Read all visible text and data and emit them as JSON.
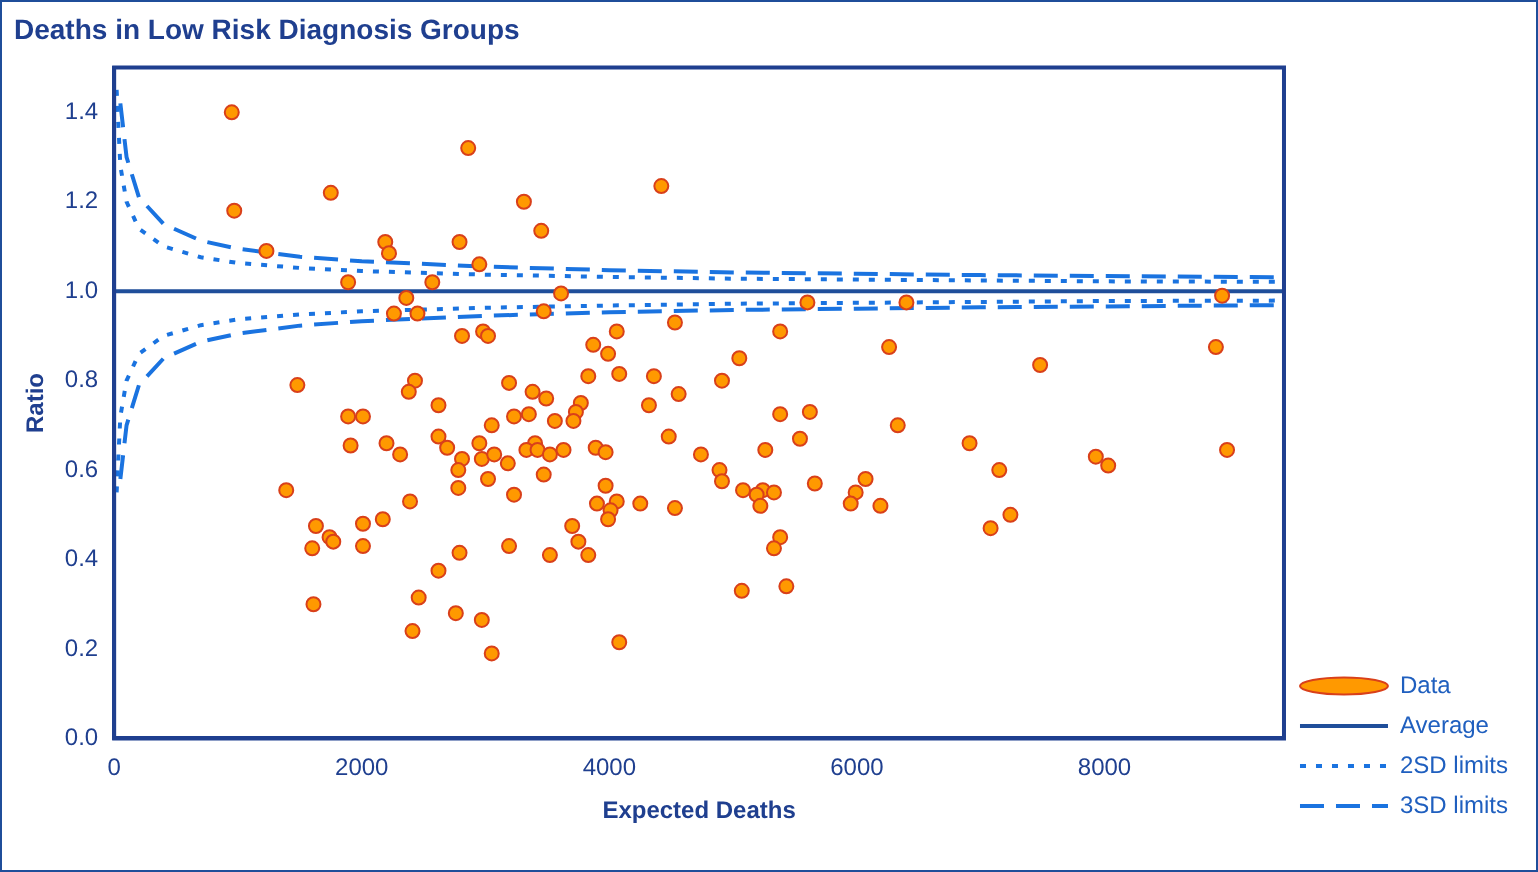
{
  "chart_data": {
    "type": "scatter",
    "title": "Deaths in Low Risk Diagnosis Groups",
    "xlabel": "Expected Deaths",
    "ylabel": "Ratio",
    "xlim": [
      0,
      9450
    ],
    "xticks": [
      0,
      2000,
      4000,
      6000,
      8000
    ],
    "ylim": [
      0,
      1.5
    ],
    "yticks": [
      {
        "value": 0,
        "label": "0.0"
      },
      {
        "value": 0.2,
        "label": "0.2"
      },
      {
        "value": 0.4,
        "label": "0.4"
      },
      {
        "value": 0.6,
        "label": "0.6"
      },
      {
        "value": 0.8,
        "label": "0.8"
      },
      {
        "value": 1,
        "label": "1.0"
      },
      {
        "value": 1.2,
        "label": "1.2"
      },
      {
        "value": 1.4,
        "label": "1.4"
      }
    ],
    "legend": "bottom right",
    "series": [
      {
        "name": "Data",
        "color": "#ff9900",
        "marker": "circle",
        "x": [
          950,
          970,
          1230,
          1750,
          2190,
          2220,
          1890,
          2570,
          2790,
          2860,
          3310,
          3450,
          2950,
          4420,
          3610,
          2360,
          2260,
          2450,
          3470,
          2810,
          2980,
          3020,
          4060,
          3870,
          3990,
          4530,
          1480,
          2430,
          2380,
          3190,
          3380,
          3490,
          3830,
          4080,
          4360,
          4560,
          2620,
          3770,
          4320,
          5600,
          6400,
          8950,
          5380,
          6260,
          8900,
          5050,
          7480,
          4910,
          3730,
          1890,
          2010,
          3230,
          3350,
          3560,
          3710,
          3050,
          1910,
          2200,
          2310,
          2620,
          2690,
          2950,
          2810,
          2970,
          3070,
          3180,
          2780,
          3400,
          3330,
          3420,
          3520,
          3630,
          3890,
          3970,
          4480,
          4740,
          3470,
          3020,
          1390,
          2780,
          3230,
          2390,
          3970,
          3900,
          4060,
          4010,
          3990,
          4250,
          4530,
          1630,
          2170,
          2010,
          1740,
          1770,
          1600,
          2010,
          3700,
          3750,
          2790,
          3190,
          3520,
          3830,
          2620,
          1610,
          2460,
          2760,
          2970,
          2410,
          3050,
          4080,
          5380,
          5620,
          5540,
          6330,
          6910,
          7150,
          7930,
          8030,
          8990,
          5260,
          4890,
          4910,
          5080,
          5240,
          5330,
          5190,
          5220,
          5660,
          6070,
          5990,
          5950,
          6190,
          7240,
          7080,
          5380,
          5330,
          5070,
          5430
        ],
        "values": [
          1.4,
          1.18,
          1.09,
          1.22,
          1.11,
          1.085,
          1.02,
          1.02,
          1.11,
          1.32,
          1.2,
          1.135,
          1.06,
          1.235,
          0.995,
          0.985,
          0.95,
          0.95,
          0.955,
          0.9,
          0.91,
          0.9,
          0.91,
          0.88,
          0.86,
          0.93,
          0.79,
          0.8,
          0.775,
          0.795,
          0.775,
          0.76,
          0.81,
          0.815,
          0.81,
          0.77,
          0.745,
          0.75,
          0.745,
          0.975,
          0.975,
          0.99,
          0.91,
          0.875,
          0.875,
          0.85,
          0.835,
          0.8,
          0.73,
          0.72,
          0.72,
          0.72,
          0.725,
          0.71,
          0.71,
          0.7,
          0.655,
          0.66,
          0.635,
          0.675,
          0.65,
          0.66,
          0.625,
          0.625,
          0.635,
          0.615,
          0.6,
          0.66,
          0.645,
          0.645,
          0.635,
          0.645,
          0.65,
          0.64,
          0.675,
          0.635,
          0.59,
          0.58,
          0.555,
          0.56,
          0.545,
          0.53,
          0.565,
          0.525,
          0.53,
          0.51,
          0.49,
          0.525,
          0.515,
          0.475,
          0.49,
          0.48,
          0.45,
          0.44,
          0.425,
          0.43,
          0.475,
          0.44,
          0.415,
          0.43,
          0.41,
          0.41,
          0.375,
          0.3,
          0.315,
          0.28,
          0.265,
          0.24,
          0.19,
          0.215,
          0.725,
          0.73,
          0.67,
          0.7,
          0.66,
          0.6,
          0.63,
          0.61,
          0.645,
          0.645,
          0.6,
          0.575,
          0.555,
          0.555,
          0.55,
          0.545,
          0.52,
          0.57,
          0.58,
          0.55,
          0.525,
          0.52,
          0.5,
          0.47,
          0.45,
          0.425,
          0.33,
          0.34
        ]
      },
      {
        "name": "Average",
        "type": "line",
        "color": "#1f4e9a",
        "marker": "none",
        "line_style": "solid",
        "x": [
          0,
          9450
        ],
        "values": [
          1,
          1
        ]
      },
      {
        "name": "2SD limits",
        "type": "line",
        "color": "#1a73e0",
        "marker": "none",
        "line_style": "dotted",
        "x": [
          20,
          50,
          100,
          200,
          400,
          700,
          1000,
          1500,
          2000,
          3000,
          4000,
          5000,
          6000,
          7000,
          8000,
          9450
        ],
        "values": [
          1.45,
          1.28,
          1.2,
          1.14,
          1.1,
          1.076,
          1.063,
          1.052,
          1.045,
          1.037,
          1.032,
          1.028,
          1.026,
          1.024,
          1.022,
          1.021
        ]
      },
      {
        "type": "line",
        "color": "#1a73e0",
        "marker": "none",
        "line_style": "dotted",
        "x": [
          20,
          50,
          100,
          200,
          400,
          700,
          1000,
          1500,
          2000,
          3000,
          4000,
          5000,
          6000,
          7000,
          8000,
          9450
        ],
        "values": [
          0.55,
          0.72,
          0.8,
          0.86,
          0.9,
          0.924,
          0.937,
          0.948,
          0.955,
          0.963,
          0.968,
          0.972,
          0.974,
          0.976,
          0.978,
          0.979
        ]
      },
      {
        "name": "3SD limits",
        "type": "line",
        "color": "#1a73e0",
        "marker": "none",
        "line_style": "dashed",
        "x": [
          50,
          100,
          200,
          400,
          700,
          1000,
          1500,
          2000,
          3000,
          4000,
          5000,
          6000,
          7000,
          8000,
          9450
        ],
        "values": [
          1.42,
          1.3,
          1.21,
          1.15,
          1.113,
          1.095,
          1.077,
          1.067,
          1.055,
          1.047,
          1.042,
          1.039,
          1.036,
          1.034,
          1.031
        ]
      },
      {
        "type": "line",
        "color": "#1a73e0",
        "marker": "none",
        "line_style": "dashed",
        "x": [
          50,
          100,
          200,
          400,
          700,
          1000,
          1500,
          2000,
          3000,
          4000,
          5000,
          6000,
          7000,
          8000,
          9450
        ],
        "values": [
          0.58,
          0.7,
          0.79,
          0.85,
          0.887,
          0.905,
          0.923,
          0.933,
          0.945,
          0.953,
          0.958,
          0.961,
          0.964,
          0.966,
          0.969
        ]
      }
    ]
  }
}
